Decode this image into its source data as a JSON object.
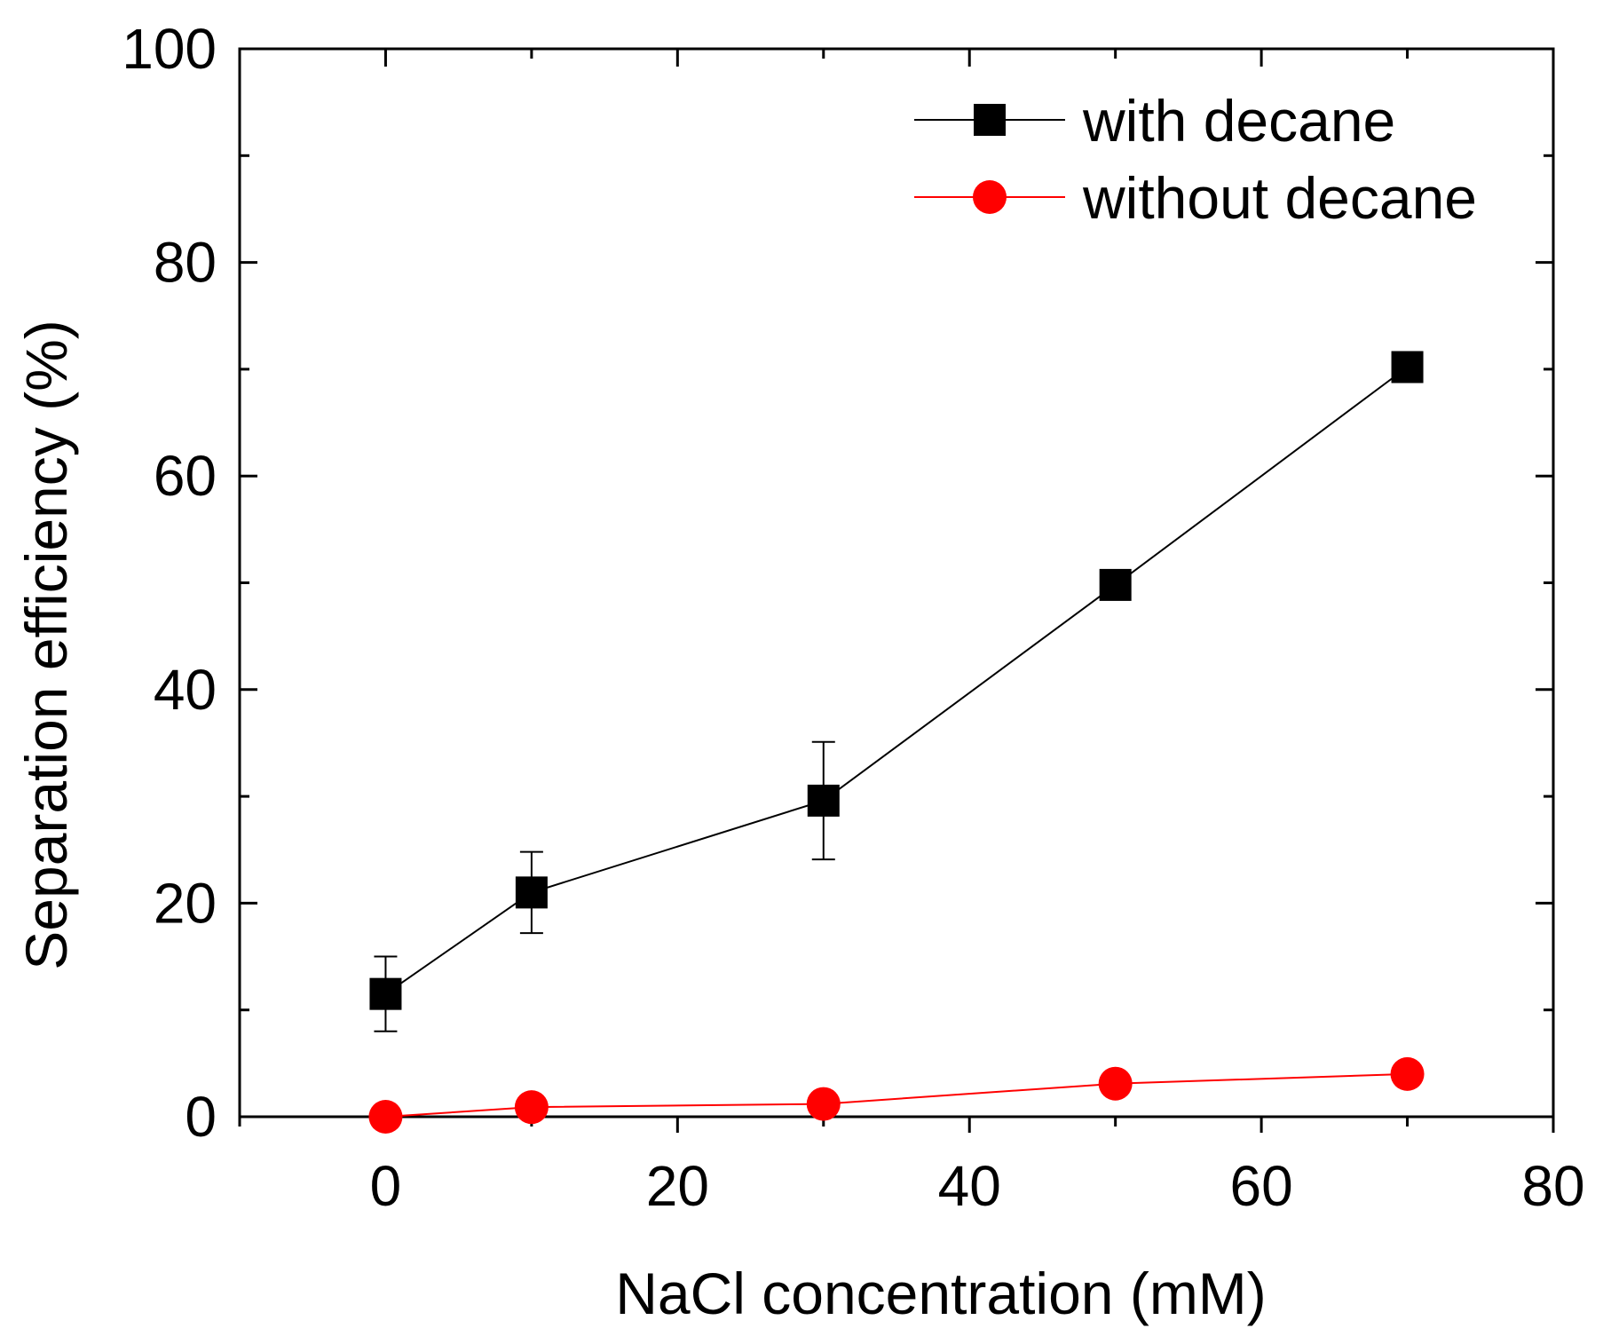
{
  "chart_data": {
    "type": "line",
    "title": "",
    "xlabel": "NaCl concentration (mM)",
    "ylabel": "Separation efficiency (%)",
    "xlim": [
      -10,
      80
    ],
    "ylim": [
      0,
      100
    ],
    "x_ticks": [
      0,
      20,
      40,
      60,
      80
    ],
    "y_ticks": [
      0,
      20,
      40,
      60,
      80,
      100
    ],
    "x_tick_labels": [
      "0",
      "20",
      "40",
      "60",
      "80"
    ],
    "y_tick_labels": [
      "0",
      "20",
      "40",
      "60",
      "80",
      "100"
    ],
    "grid": false,
    "legend_position": "top-right",
    "series": [
      {
        "name": "with decane",
        "marker": "square",
        "color": "#000000",
        "x": [
          0,
          10,
          30,
          50,
          70
        ],
        "values": [
          11.5,
          21,
          29.6,
          49.8,
          70.2
        ],
        "errors": [
          3.5,
          3.8,
          5.5,
          0.8,
          1.0
        ]
      },
      {
        "name": "without decane",
        "marker": "circle",
        "color": "#ff0000",
        "x": [
          0,
          10,
          30,
          50,
          70
        ],
        "values": [
          0,
          0.9,
          1.2,
          3.1,
          4.0
        ],
        "errors": [
          0,
          0,
          0,
          0,
          0
        ]
      }
    ]
  }
}
